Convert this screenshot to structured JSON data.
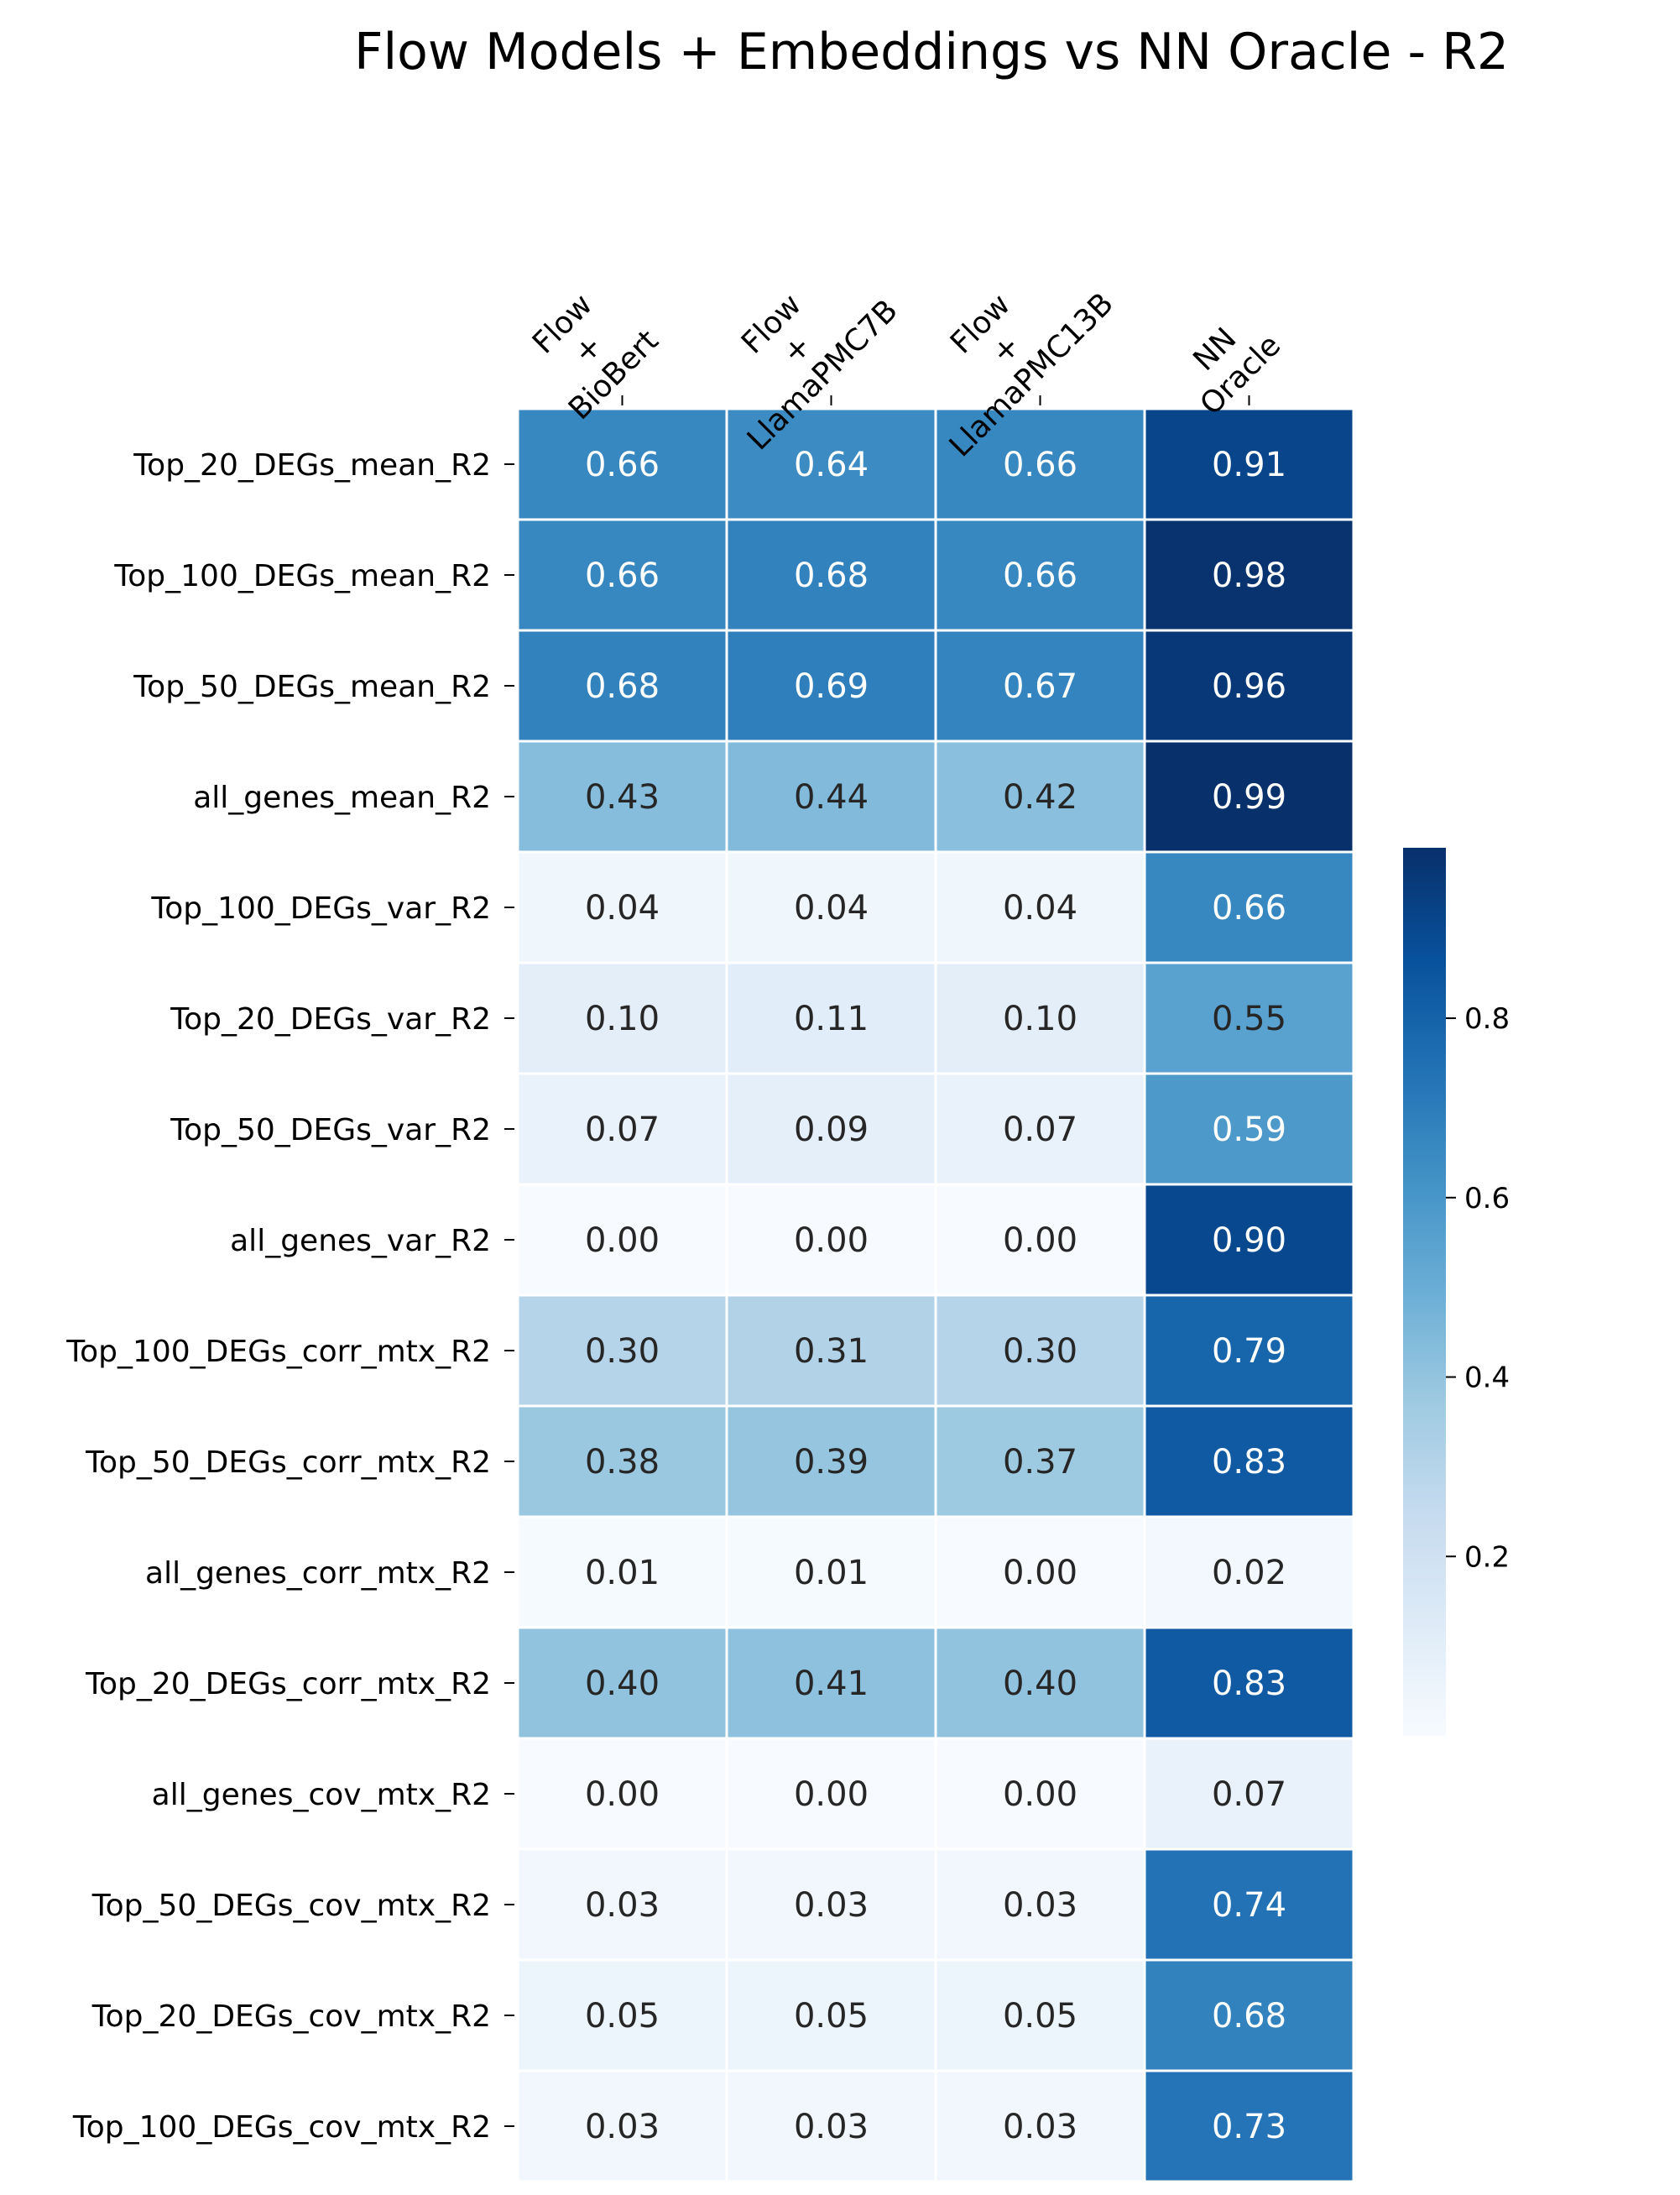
{
  "chart_data": {
    "type": "heatmap",
    "title": "Flow Models + Embeddings vs NN Oracle - R2",
    "colormap": "Blues",
    "columns": [
      [
        "Flow",
        "+",
        "BioBert"
      ],
      [
        "Flow",
        "+",
        "LlamaPMC7B"
      ],
      [
        "Flow",
        "+",
        "LlamaPMC13B"
      ],
      [
        "NN",
        "Oracle"
      ]
    ],
    "rows": [
      "Top_20_DEGs_mean_R2",
      "Top_100_DEGs_mean_R2",
      "Top_50_DEGs_mean_R2",
      "all_genes_mean_R2",
      "Top_100_DEGs_var_R2",
      "Top_20_DEGs_var_R2",
      "Top_50_DEGs_var_R2",
      "all_genes_var_R2",
      "Top_100_DEGs_corr_mtx_R2",
      "Top_50_DEGs_corr_mtx_R2",
      "all_genes_corr_mtx_R2",
      "Top_20_DEGs_corr_mtx_R2",
      "all_genes_cov_mtx_R2",
      "Top_50_DEGs_cov_mtx_R2",
      "Top_20_DEGs_cov_mtx_R2",
      "Top_100_DEGs_cov_mtx_R2"
    ],
    "values": [
      [
        0.66,
        0.64,
        0.66,
        0.91
      ],
      [
        0.66,
        0.68,
        0.66,
        0.98
      ],
      [
        0.68,
        0.69,
        0.67,
        0.96
      ],
      [
        0.43,
        0.44,
        0.42,
        0.99
      ],
      [
        0.04,
        0.04,
        0.04,
        0.66
      ],
      [
        0.1,
        0.11,
        0.1,
        0.55
      ],
      [
        0.07,
        0.09,
        0.07,
        0.59
      ],
      [
        0.0,
        0.0,
        0.0,
        0.9
      ],
      [
        0.3,
        0.31,
        0.3,
        0.79
      ],
      [
        0.38,
        0.39,
        0.37,
        0.83
      ],
      [
        0.01,
        0.01,
        0.0,
        0.02
      ],
      [
        0.4,
        0.41,
        0.4,
        0.83
      ],
      [
        0.0,
        0.0,
        0.0,
        0.07
      ],
      [
        0.03,
        0.03,
        0.03,
        0.74
      ],
      [
        0.05,
        0.05,
        0.05,
        0.68
      ],
      [
        0.03,
        0.03,
        0.03,
        0.73
      ]
    ],
    "colorbar": {
      "range": [
        0.0,
        0.99
      ],
      "ticks": [
        0.2,
        0.4,
        0.6,
        0.8
      ],
      "tick_labels": [
        "0.2",
        "0.4",
        "0.6",
        "0.8"
      ]
    },
    "value_format": "0.00"
  }
}
